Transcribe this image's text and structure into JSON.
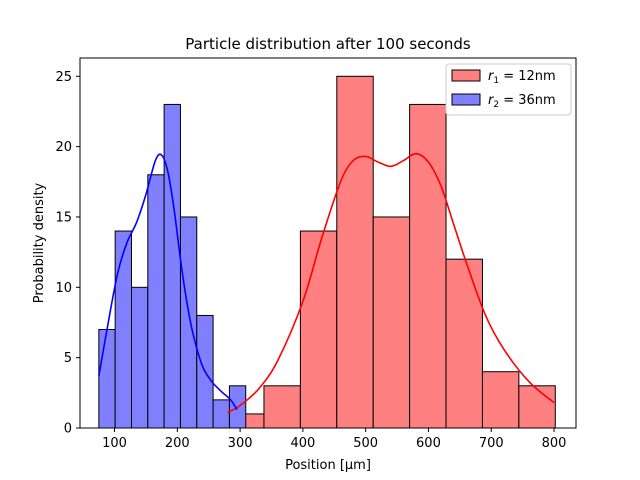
{
  "chart_data": {
    "type": "histogram",
    "title": "Particle distribution after 100 seconds",
    "xlabel": "Position [μm]",
    "ylabel": "Probability density",
    "xlim": [
      45,
      835
    ],
    "ylim": [
      0,
      26.3
    ],
    "xticks": [
      100,
      200,
      300,
      400,
      500,
      600,
      700,
      800
    ],
    "yticks": [
      0,
      5,
      10,
      15,
      20,
      25
    ],
    "legend_position": "top-right",
    "series": [
      {
        "name": "r1 = 12nm",
        "legend_symbol": "r",
        "legend_subscript": "1",
        "legend_rest": " = 12nm",
        "fill_color": "#ff8080",
        "line_color": "#ff0000",
        "bins": [
          {
            "x0": 280,
            "x1": 338,
            "count": 1
          },
          {
            "x0": 338,
            "x1": 396,
            "count": 3
          },
          {
            "x0": 396,
            "x1": 454,
            "count": 14
          },
          {
            "x0": 454,
            "x1": 512,
            "count": 25
          },
          {
            "x0": 512,
            "x1": 570,
            "count": 15
          },
          {
            "x0": 570,
            "x1": 628,
            "count": 23
          },
          {
            "x0": 628,
            "x1": 686,
            "count": 12
          },
          {
            "x0": 686,
            "x1": 744,
            "count": 4
          },
          {
            "x0": 744,
            "x1": 802,
            "count": 3
          }
        ],
        "kde": {
          "x": [
            280,
            300,
            330,
            360,
            400,
            430,
            460,
            480,
            500,
            520,
            540,
            560,
            580,
            600,
            620,
            640,
            660,
            690,
            720,
            760,
            800
          ],
          "y": [
            1.1,
            1.6,
            2.8,
            4.8,
            9.0,
            13.5,
            17.5,
            19.0,
            19.3,
            18.9,
            18.6,
            19.0,
            19.5,
            18.9,
            17.2,
            14.5,
            11.8,
            8.1,
            5.6,
            3.3,
            1.8
          ]
        }
      },
      {
        "name": "r2 = 36nm",
        "legend_symbol": "r",
        "legend_subscript": "2",
        "legend_rest": " = 36nm",
        "fill_color": "#8080ff",
        "line_color": "#0000ff",
        "bins": [
          {
            "x0": 75,
            "x1": 101,
            "count": 7
          },
          {
            "x0": 101,
            "x1": 127,
            "count": 14
          },
          {
            "x0": 127,
            "x1": 153,
            "count": 10
          },
          {
            "x0": 153,
            "x1": 179,
            "count": 18
          },
          {
            "x0": 179,
            "x1": 205,
            "count": 23
          },
          {
            "x0": 205,
            "x1": 231,
            "count": 15
          },
          {
            "x0": 231,
            "x1": 257,
            "count": 8
          },
          {
            "x0": 257,
            "x1": 283,
            "count": 2
          },
          {
            "x0": 283,
            "x1": 309,
            "count": 3
          }
        ],
        "kde": {
          "x": [
            75,
            90,
            105,
            120,
            135,
            150,
            165,
            175,
            185,
            195,
            205,
            215,
            225,
            240,
            255,
            270,
            285,
            295
          ],
          "y": [
            3.7,
            7.5,
            11.0,
            13.2,
            14.6,
            16.6,
            19.0,
            19.4,
            18.2,
            15.5,
            12.0,
            9.0,
            6.7,
            4.4,
            3.3,
            2.6,
            2.0,
            1.3
          ]
        }
      }
    ]
  }
}
